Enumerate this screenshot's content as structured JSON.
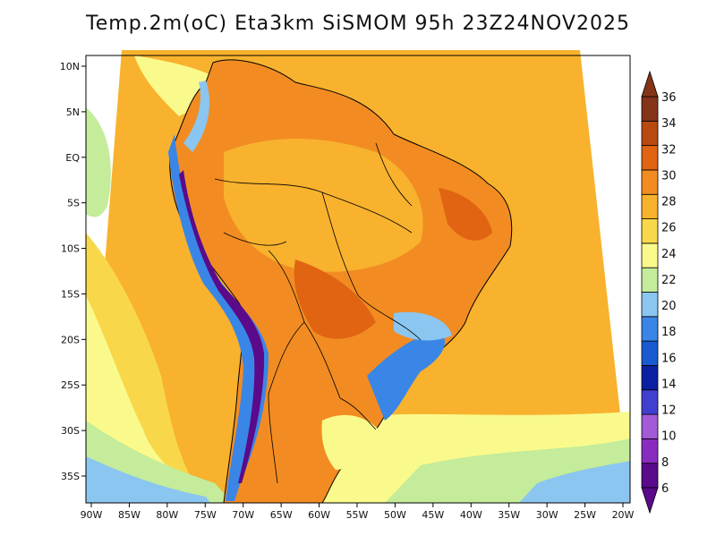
{
  "title": "Temp.2m(oC) Eta3km SiSMOM 95h 23Z24NOV2025",
  "chart_data": {
    "type": "heatmap",
    "title": "Temp.2m(oC) Eta3km SiSMOM 95h 23Z24NOV2025",
    "variable": "Temp.2m",
    "units": "oC",
    "lon_ticks": [
      "90W",
      "85W",
      "80W",
      "75W",
      "70W",
      "65W",
      "60W",
      "55W",
      "50W",
      "45W",
      "40W",
      "35W",
      "30W",
      "25W",
      "20W"
    ],
    "lat_ticks": [
      "10N",
      "5N",
      "EQ",
      "5S",
      "10S",
      "15S",
      "20S",
      "25S",
      "30S",
      "35S"
    ],
    "colorbar": {
      "labels": [
        "6",
        "8",
        "10",
        "12",
        "14",
        "16",
        "18",
        "20",
        "22",
        "24",
        "26",
        "28",
        "30",
        "32",
        "34",
        "36"
      ],
      "colors": [
        "#5a0a8a",
        "#8a2bc0",
        "#a25ad6",
        "#4040d0",
        "#0a20a0",
        "#1a5ad0",
        "#3a86e6",
        "#8ac6f0",
        "#c4ec9a",
        "#fafa8c",
        "#f8d84a",
        "#f8b22e",
        "#f28c22",
        "#e06412",
        "#b84a10",
        "#843418"
      ]
    },
    "value_range": [
      6,
      36
    ]
  }
}
